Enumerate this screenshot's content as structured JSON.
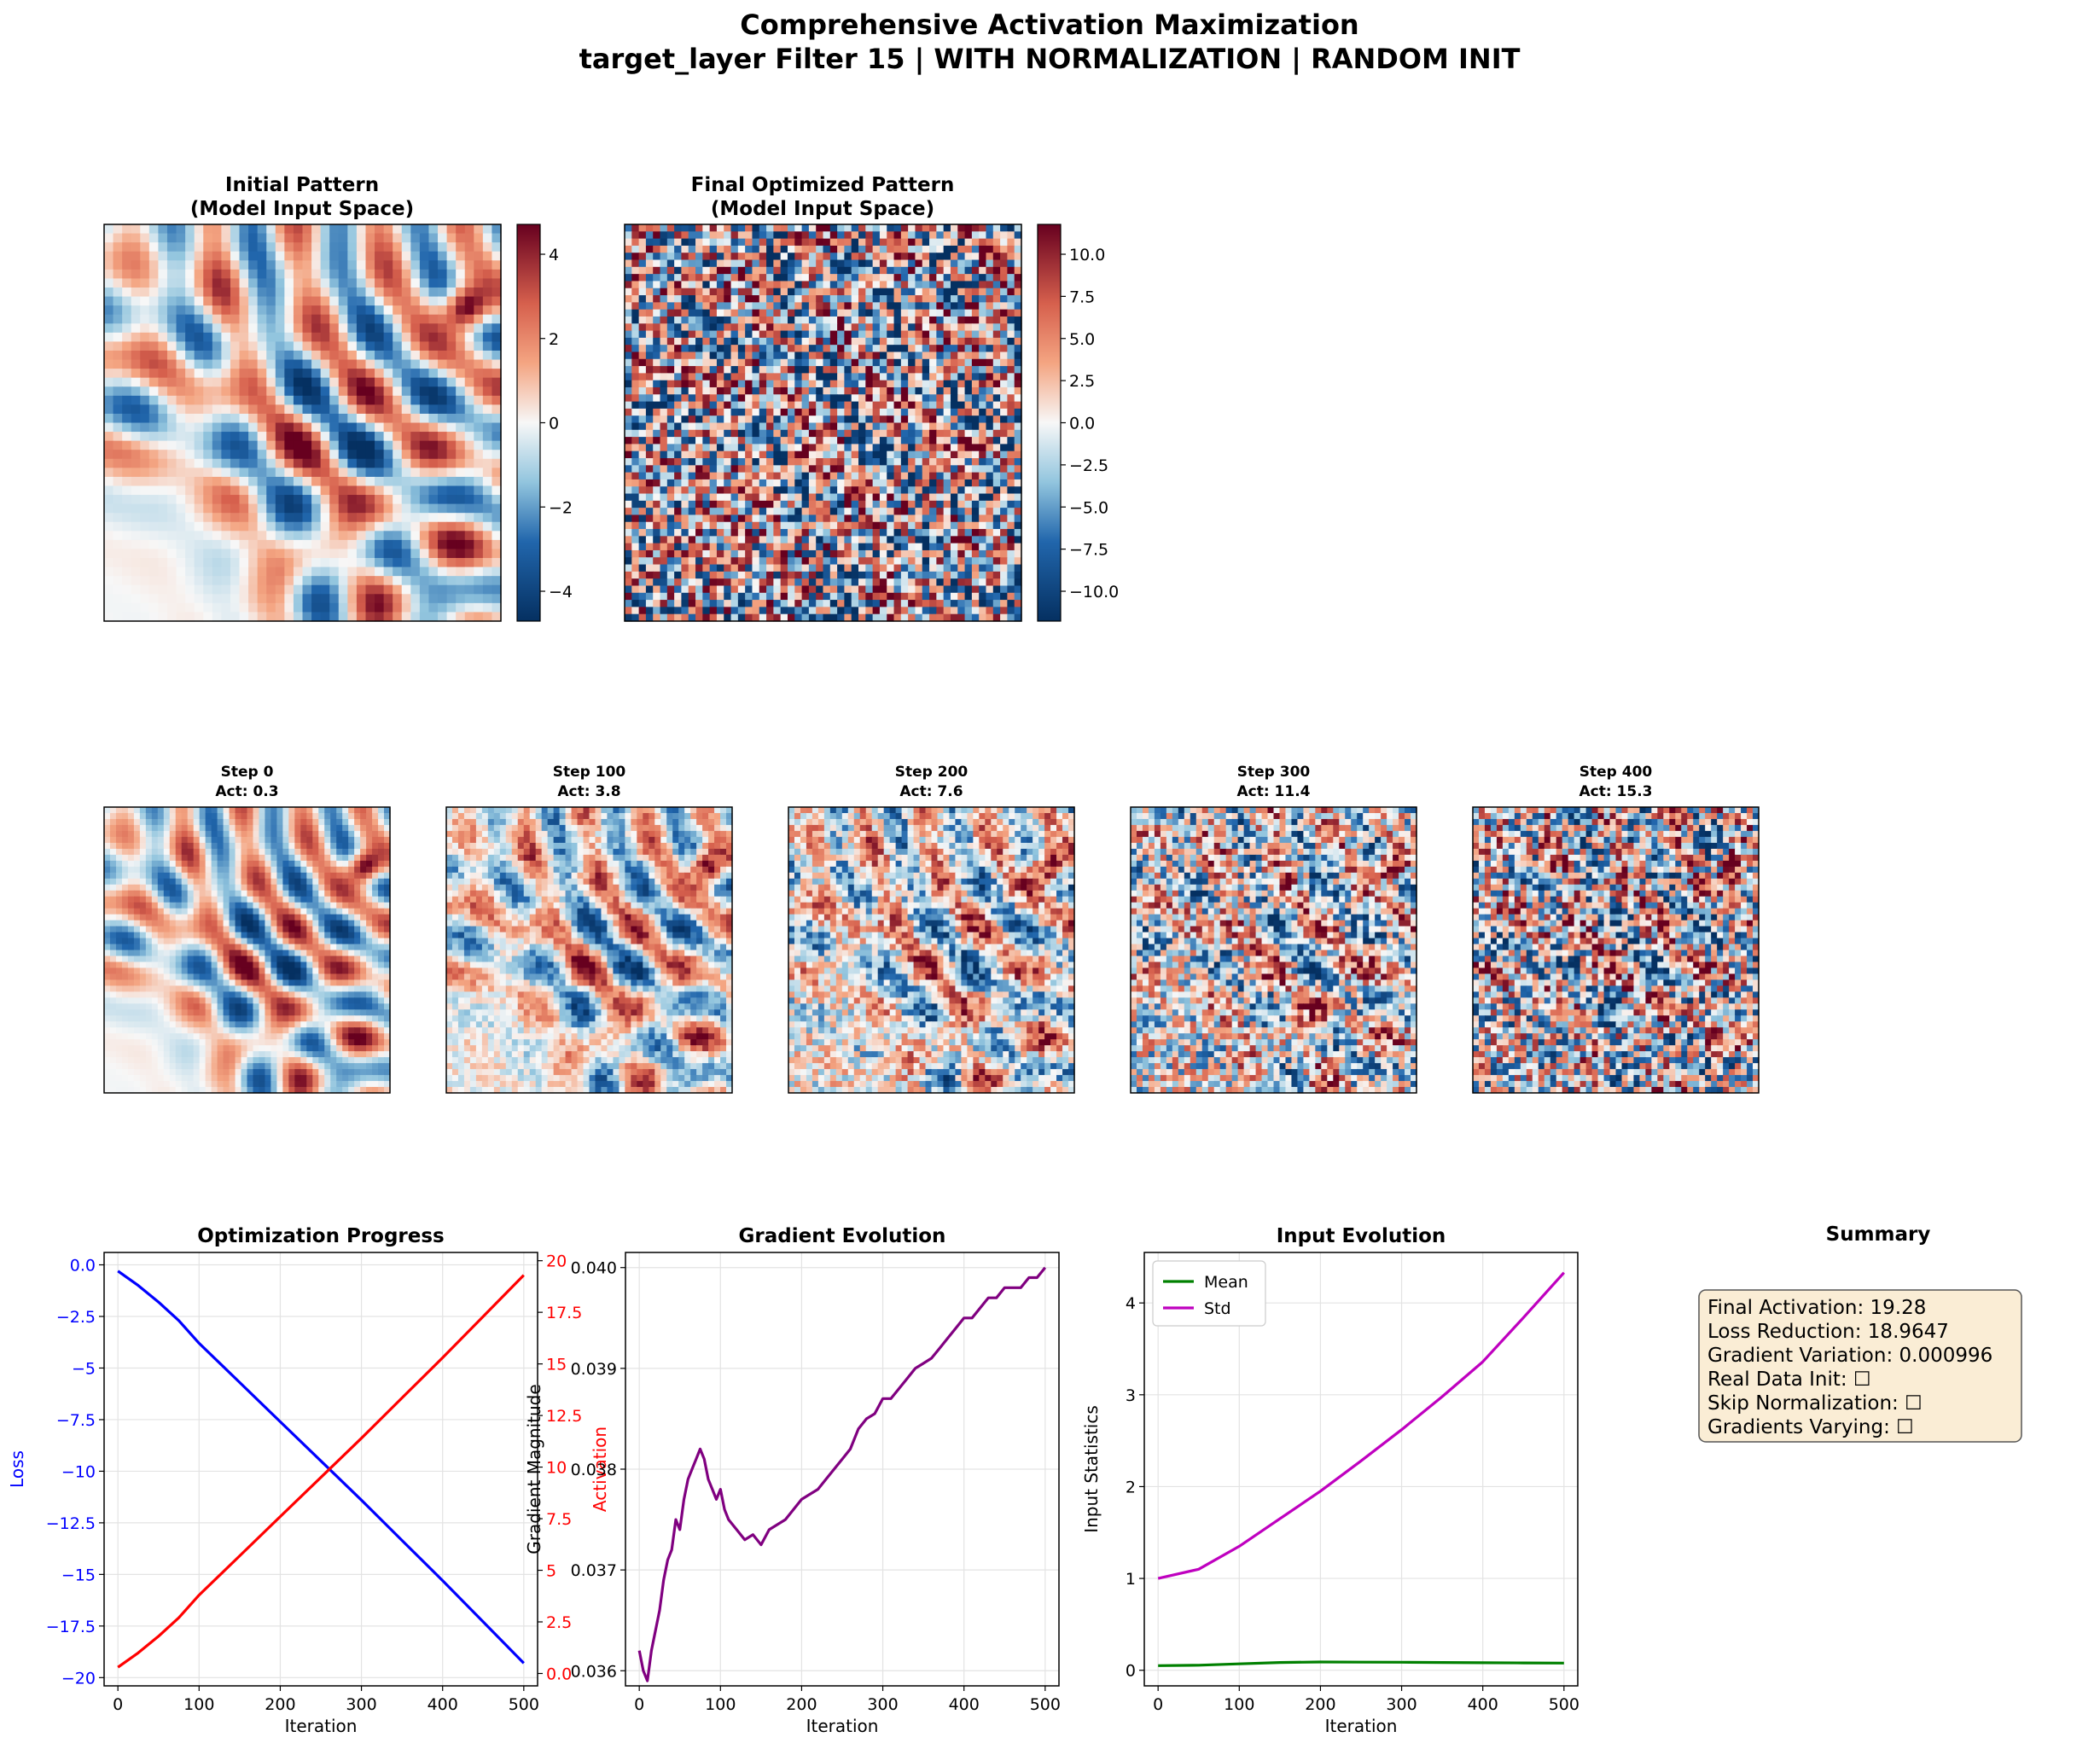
{
  "figure": {
    "title": "Comprehensive Activation Maximization",
    "subtitle": "target_layer Filter 15 | WITH NORMALIZATION | RANDOM INIT"
  },
  "colors": {
    "cmap_low": "#053061",
    "cmap_mid": "#f7f7f7",
    "cmap_high": "#67001f",
    "loss": "#0000ff",
    "activation": "#ff0000",
    "gradient": "#800080",
    "mean": "#008000",
    "std": "#bf00bf",
    "summary_bg": "#f5deb3",
    "grid": "#e6e6e6"
  },
  "heatmaps": {
    "initial": {
      "title": "Initial Pattern",
      "subtitle": "(Model Input Space)",
      "colorbar_ticks": [
        "4",
        "2",
        "0",
        "−2",
        "−4"
      ]
    },
    "final": {
      "title": "Final Optimized Pattern",
      "subtitle": "(Model Input Space)",
      "colorbar_ticks": [
        "10.0",
        "7.5",
        "5.0",
        "2.5",
        "0.0",
        "−2.5",
        "−5.0",
        "−7.5",
        "−10.0"
      ]
    },
    "steps": [
      {
        "step": "Step 0",
        "act": "Act: 0.3"
      },
      {
        "step": "Step 100",
        "act": "Act: 3.8"
      },
      {
        "step": "Step 200",
        "act": "Act: 7.6"
      },
      {
        "step": "Step 300",
        "act": "Act: 11.4"
      },
      {
        "step": "Step 400",
        "act": "Act: 15.3"
      }
    ]
  },
  "chart_data": [
    {
      "type": "line",
      "title": "Optimization Progress",
      "xlabel": "Iteration",
      "ylabel": "Loss",
      "ylabel_right": "Activation",
      "xlim": [
        -17,
        517
      ],
      "ylim": [
        -20.4,
        0.6
      ],
      "ylim_right": [
        -0.6,
        20.4
      ],
      "xticks": [
        0,
        100,
        200,
        300,
        400,
        500
      ],
      "yticks": [
        0.0,
        -2.5,
        -5.0,
        -7.5,
        -10.0,
        -12.5,
        -15.0,
        -17.5,
        -20.0
      ],
      "yticks_right": [
        0.0,
        2.5,
        5.0,
        7.5,
        10.0,
        12.5,
        15.0,
        17.5,
        20.0
      ],
      "grid": true,
      "series": [
        {
          "axis": "left",
          "x": [
            0,
            25,
            50,
            75,
            100,
            150,
            200,
            250,
            300,
            350,
            400,
            450,
            500
          ],
          "values": [
            -0.3,
            -1.0,
            -1.8,
            -2.7,
            -3.8,
            -5.7,
            -7.6,
            -9.5,
            -11.4,
            -13.35,
            -15.3,
            -17.3,
            -19.3
          ]
        },
        {
          "axis": "right",
          "x": [
            0,
            25,
            50,
            75,
            100,
            150,
            200,
            250,
            300,
            350,
            400,
            450,
            500
          ],
          "values": [
            0.3,
            1.0,
            1.8,
            2.7,
            3.8,
            5.7,
            7.6,
            9.5,
            11.4,
            13.35,
            15.3,
            17.3,
            19.3
          ]
        }
      ]
    },
    {
      "type": "line",
      "title": "Gradient Evolution",
      "xlabel": "Iteration",
      "ylabel": "Gradient Magnitude",
      "xlim": [
        -17,
        517
      ],
      "ylim": [
        0.03585,
        0.04015
      ],
      "xticks": [
        0,
        100,
        200,
        300,
        400,
        500
      ],
      "yticks": [
        0.036,
        0.037,
        0.038,
        0.039,
        0.04
      ],
      "grid": true,
      "series": [
        {
          "x": [
            0,
            5,
            10,
            15,
            20,
            25,
            30,
            35,
            40,
            45,
            50,
            55,
            60,
            65,
            70,
            75,
            80,
            85,
            90,
            95,
            100,
            105,
            110,
            120,
            130,
            140,
            150,
            160,
            170,
            180,
            190,
            200,
            210,
            220,
            230,
            240,
            250,
            260,
            270,
            280,
            290,
            300,
            310,
            320,
            330,
            340,
            350,
            360,
            370,
            380,
            390,
            400,
            410,
            420,
            430,
            440,
            450,
            460,
            470,
            480,
            490,
            500
          ],
          "values": [
            0.0362,
            0.036,
            0.0359,
            0.0362,
            0.0364,
            0.0366,
            0.0369,
            0.0371,
            0.0372,
            0.0375,
            0.0374,
            0.0377,
            0.0379,
            0.038,
            0.0381,
            0.0382,
            0.0381,
            0.0379,
            0.0378,
            0.0377,
            0.0378,
            0.0376,
            0.0375,
            0.0374,
            0.0373,
            0.03735,
            0.03725,
            0.0374,
            0.03745,
            0.0375,
            0.0376,
            0.0377,
            0.03775,
            0.0378,
            0.0379,
            0.038,
            0.0381,
            0.0382,
            0.0384,
            0.0385,
            0.03855,
            0.0387,
            0.0387,
            0.0388,
            0.0389,
            0.039,
            0.03905,
            0.0391,
            0.0392,
            0.0393,
            0.0394,
            0.0395,
            0.0395,
            0.0396,
            0.0397,
            0.0397,
            0.0398,
            0.0398,
            0.0398,
            0.0399,
            0.0399,
            0.04
          ]
        }
      ]
    },
    {
      "type": "line",
      "title": "Input Evolution",
      "xlabel": "Iteration",
      "ylabel": "Input Statistics",
      "xlim": [
        -17,
        517
      ],
      "ylim": [
        -0.17,
        4.55
      ],
      "xticks": [
        0,
        100,
        200,
        300,
        400,
        500
      ],
      "yticks": [
        0,
        1,
        2,
        3,
        4
      ],
      "grid": true,
      "legend": "top-left",
      "series": [
        {
          "name": "Mean",
          "x": [
            0,
            50,
            100,
            150,
            200,
            250,
            300,
            350,
            400,
            450,
            500
          ],
          "values": [
            0.05,
            0.055,
            0.07,
            0.085,
            0.09,
            0.088,
            0.087,
            0.085,
            0.082,
            0.08,
            0.078
          ]
        },
        {
          "name": "Std",
          "x": [
            0,
            50,
            100,
            150,
            200,
            250,
            300,
            350,
            400,
            450,
            500
          ],
          "values": [
            1.0,
            1.1,
            1.35,
            1.65,
            1.95,
            2.28,
            2.62,
            2.98,
            3.36,
            3.84,
            4.33
          ]
        }
      ]
    }
  ],
  "summary": {
    "title": "Summary",
    "lines": [
      "Final Activation: 19.28",
      "Loss Reduction: 18.9647",
      "Gradient Variation: 0.000996",
      "Real Data Init: ☐",
      "Skip Normalization: ☐",
      "Gradients Varying: ☐"
    ]
  }
}
